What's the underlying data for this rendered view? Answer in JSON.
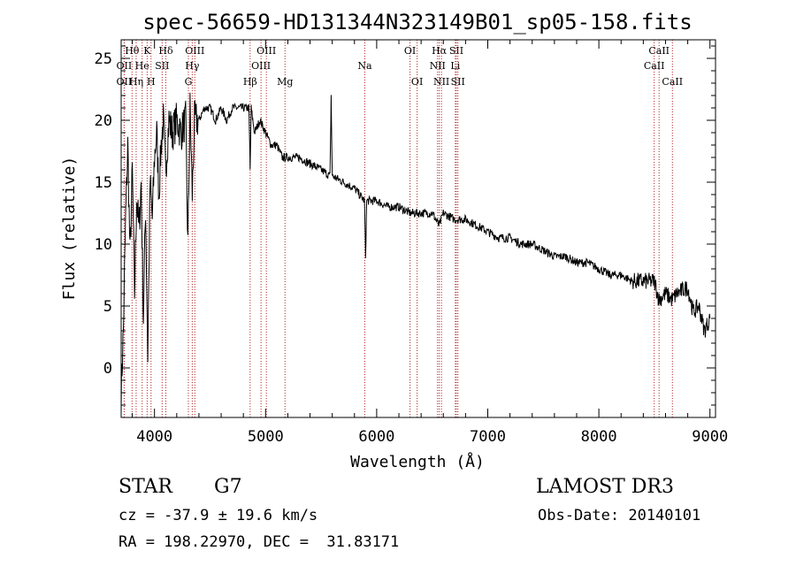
{
  "chart_data": {
    "type": "line",
    "title": "spec-56659-HD131344N323149B01_sp05-158.fits",
    "xlabel": "Wavelength (Å)",
    "ylabel": "Flux (relative)",
    "xlim": [
      3700,
      9050
    ],
    "ylim": [
      -4,
      26.5
    ],
    "x_ticks": [
      4000,
      5000,
      6000,
      7000,
      8000,
      9000
    ],
    "y_ticks": [
      0,
      5,
      10,
      15,
      20,
      25
    ],
    "colors": {
      "spectrum": "#000000",
      "line_marker": "#b22222"
    },
    "series": [
      {
        "name": "spectrum",
        "x": [
          3700,
          3720,
          3740,
          3760,
          3780,
          3800,
          3820,
          3840,
          3860,
          3880,
          3900,
          3920,
          3940,
          3960,
          3980,
          4000,
          4020,
          4040,
          4060,
          4080,
          4100,
          4130,
          4160,
          4200,
          4240,
          4280,
          4300,
          4320,
          4340,
          4360,
          4400,
          4450,
          4500,
          4550,
          4600,
          4650,
          4700,
          4750,
          4800,
          4850,
          4861,
          4870,
          4900,
          4950,
          5000,
          5050,
          5100,
          5150,
          5200,
          5250,
          5300,
          5400,
          5500,
          5580,
          5590,
          5600,
          5700,
          5800,
          5890,
          5900,
          5910,
          6000,
          6100,
          6200,
          6300,
          6400,
          6500,
          6563,
          6600,
          6700,
          6800,
          6900,
          7000,
          7100,
          7200,
          7300,
          7400,
          7500,
          7600,
          7700,
          7800,
          7900,
          8000,
          8100,
          8200,
          8300,
          8400,
          8500,
          8542,
          8600,
          8662,
          8700,
          8800,
          8850,
          8900,
          8950,
          9000
        ],
        "y": [
          -2,
          3,
          12,
          18,
          9,
          16,
          6,
          14,
          11,
          15,
          4,
          13,
          1,
          15,
          12,
          17,
          19,
          14,
          18,
          20,
          16,
          20,
          19,
          20,
          19,
          20,
          10,
          21,
          14,
          20,
          20,
          21,
          21,
          20,
          21,
          20,
          21,
          21,
          21,
          21,
          16,
          21,
          19,
          20,
          19,
          18,
          18,
          17,
          17,
          17,
          17,
          16.5,
          16,
          15.5,
          22,
          15.5,
          15,
          14.5,
          13.5,
          9,
          13.5,
          13.5,
          13,
          13,
          12.5,
          12.5,
          12.5,
          11.5,
          12.5,
          12,
          12,
          11.5,
          11,
          10.5,
          10.5,
          10,
          10,
          9.5,
          9,
          9,
          8.5,
          8.5,
          8,
          7.5,
          7.5,
          7,
          7,
          7,
          5.5,
          6,
          5.5,
          6,
          6.5,
          4.5,
          5,
          3,
          4
        ]
      }
    ],
    "line_markers": [
      {
        "label": "Hθ",
        "x": 3798,
        "row": 1
      },
      {
        "label": "OII",
        "x": 3727,
        "row": 2
      },
      {
        "label": "OII",
        "x": 3727,
        "row": 3
      },
      {
        "label": "K",
        "x": 3934,
        "row": 1
      },
      {
        "label": "He",
        "x": 3889,
        "row": 2
      },
      {
        "label": "Hη",
        "x": 3835,
        "row": 3
      },
      {
        "label": "H",
        "x": 3969,
        "row": 3
      },
      {
        "label": "Hδ",
        "x": 4102,
        "row": 1
      },
      {
        "label": "SII",
        "x": 4069,
        "row": 2
      },
      {
        "label": "OIII",
        "x": 4363,
        "row": 1
      },
      {
        "label": "Hγ",
        "x": 4340,
        "row": 2
      },
      {
        "label": "G",
        "x": 4305,
        "row": 3
      },
      {
        "label": "Hβ",
        "x": 4861,
        "row": 3
      },
      {
        "label": "OIII",
        "x": 5007,
        "row": 1
      },
      {
        "label": "OIII",
        "x": 4959,
        "row": 2
      },
      {
        "label": "Mg",
        "x": 5175,
        "row": 3
      },
      {
        "label": "Na",
        "x": 5893,
        "row": 2
      },
      {
        "label": "OI",
        "x": 6300,
        "row": 1
      },
      {
        "label": "OI",
        "x": 6364,
        "row": 3
      },
      {
        "label": "Hα",
        "x": 6563,
        "row": 1
      },
      {
        "label": "NII",
        "x": 6548,
        "row": 2
      },
      {
        "label": "NII",
        "x": 6583,
        "row": 3
      },
      {
        "label": "SII",
        "x": 6717,
        "row": 1
      },
      {
        "label": "Li",
        "x": 6708,
        "row": 2
      },
      {
        "label": "SII",
        "x": 6731,
        "row": 3
      },
      {
        "label": "CaII",
        "x": 8542,
        "row": 1
      },
      {
        "label": "CaII",
        "x": 8498,
        "row": 2
      },
      {
        "label": "CaII",
        "x": 8662,
        "row": 3
      }
    ]
  },
  "info": {
    "object_class": "STAR",
    "subclass": "G7",
    "survey": "LAMOST DR3",
    "redshift_line": "cz = -37.9 ± 19.6 km/s",
    "obs_date": "Obs-Date: 20140101",
    "coords": "RA = 198.22970, DEC =  31.83171"
  }
}
